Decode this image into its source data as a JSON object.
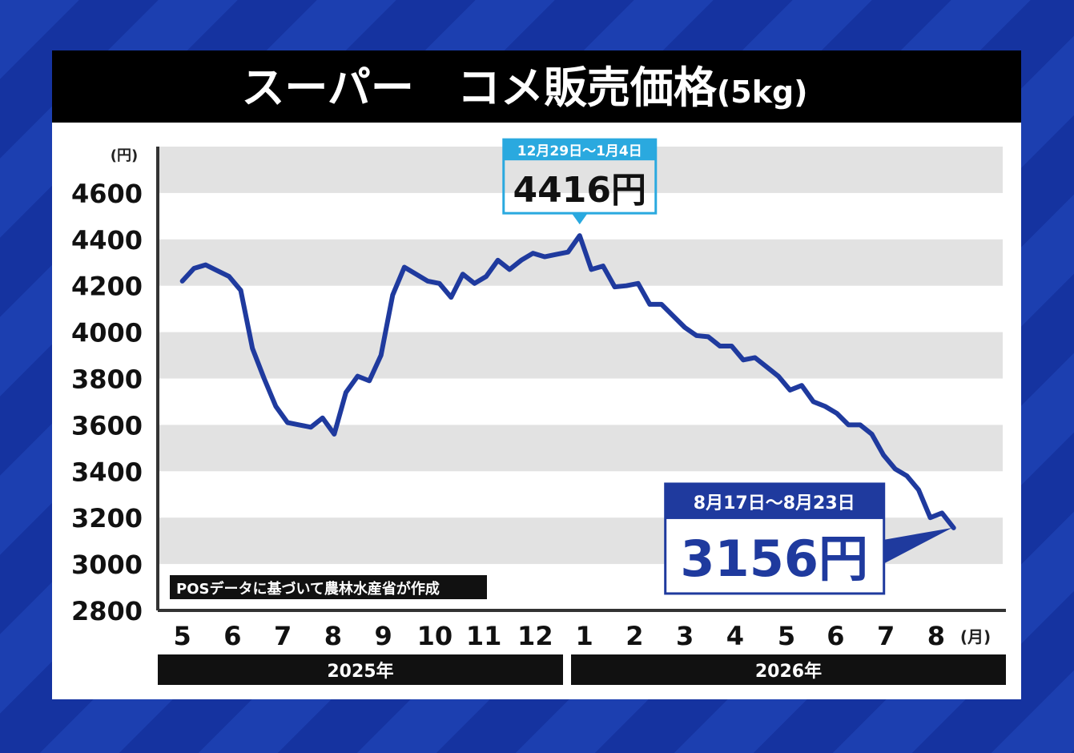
{
  "chart_data": {
    "type": "line",
    "title": "スーパー　コメ販売価格",
    "title_unit": "(5kg)",
    "y_unit": "(円)",
    "x_unit": "(月)",
    "source_note": "POSデータに基づいて農林水産省が作成",
    "x_groups": [
      "2025年",
      "2026年"
    ],
    "x": [
      0,
      1,
      2,
      3,
      4,
      5,
      6,
      7,
      8,
      9,
      10,
      11,
      12,
      13,
      14,
      15,
      16,
      17,
      18,
      19,
      20,
      21,
      22,
      23,
      24,
      25,
      26,
      27,
      28,
      29,
      30,
      31,
      32,
      33,
      34,
      35,
      36,
      37,
      38,
      39,
      40,
      41,
      42,
      43,
      44,
      45,
      46,
      47,
      48,
      49,
      50,
      51,
      52,
      53,
      54,
      55,
      56,
      57,
      58,
      59,
      60,
      61,
      62,
      63,
      64,
      65,
      66
    ],
    "series": [
      {
        "name": "コメ販売価格",
        "color": "#1f3a9e",
        "values": [
          4220,
          4275,
          4290,
          4265,
          4240,
          4180,
          3930,
          3800,
          3680,
          3610,
          3600,
          3590,
          3630,
          3560,
          3740,
          3810,
          3790,
          3900,
          4160,
          4280,
          4250,
          4220,
          4210,
          4150,
          4250,
          4210,
          4240,
          4310,
          4270,
          4310,
          4340,
          4325,
          4335,
          4345,
          4416,
          4270,
          4285,
          4195,
          4200,
          4210,
          4120,
          4120,
          4070,
          4020,
          3985,
          3980,
          3940,
          3940,
          3880,
          3890,
          3850,
          3810,
          3750,
          3770,
          3700,
          3680,
          3650,
          3600,
          3600,
          3560,
          3470,
          3410,
          3380,
          3320,
          3200,
          3220,
          3156
        ],
        "value_labels": [
          null,
          null,
          null,
          null,
          null,
          null,
          null,
          null,
          null,
          null,
          null,
          null,
          null,
          null,
          null,
          null,
          null,
          null,
          null,
          null,
          null,
          null,
          null,
          null,
          null,
          null,
          null,
          null,
          null,
          null,
          null,
          null,
          null,
          null,
          "4416円",
          null,
          null,
          null,
          null,
          null,
          null,
          null,
          null,
          null,
          null,
          null,
          null,
          null,
          null,
          null,
          null,
          null,
          null,
          null,
          null,
          null,
          null,
          null,
          null,
          null,
          null,
          null,
          null,
          null,
          null,
          null,
          "3156円"
        ],
        "date_labels": [
          null,
          null,
          null,
          null,
          null,
          null,
          null,
          null,
          null,
          null,
          null,
          null,
          null,
          null,
          null,
          null,
          null,
          null,
          null,
          null,
          null,
          null,
          null,
          null,
          null,
          null,
          null,
          null,
          null,
          null,
          null,
          null,
          null,
          null,
          "12月29日〜1月4日",
          null,
          null,
          null,
          null,
          null,
          null,
          null,
          null,
          null,
          null,
          null,
          null,
          null,
          null,
          null,
          null,
          null,
          null,
          null,
          null,
          null,
          null,
          null,
          null,
          null,
          null,
          null,
          null,
          null,
          null,
          null,
          "8月17日〜8月23日"
        ]
      }
    ],
    "xlim": [
      -2.1,
      70.2
    ],
    "xticks": [
      {
        "value": 0,
        "label": "5"
      },
      {
        "value": 4.3,
        "label": "6"
      },
      {
        "value": 8.6,
        "label": "7"
      },
      {
        "value": 12.9,
        "label": "8"
      },
      {
        "value": 17.2,
        "label": "9"
      },
      {
        "value": 21.6,
        "label": "10"
      },
      {
        "value": 25.8,
        "label": "11"
      },
      {
        "value": 30.2,
        "label": "12"
      },
      {
        "value": 34.4,
        "label": "1"
      },
      {
        "value": 38.7,
        "label": "2"
      },
      {
        "value": 43,
        "label": "3"
      },
      {
        "value": 47.3,
        "label": "4"
      },
      {
        "value": 51.7,
        "label": "5"
      },
      {
        "value": 55.9,
        "label": "6"
      },
      {
        "value": 60.2,
        "label": "7"
      },
      {
        "value": 64.5,
        "label": "8"
      }
    ],
    "ylim": [
      2800,
      4800
    ],
    "yticks": [
      2800,
      3000,
      3200,
      3400,
      3600,
      3800,
      4000,
      4200,
      4400,
      4600
    ],
    "grid": true
  }
}
